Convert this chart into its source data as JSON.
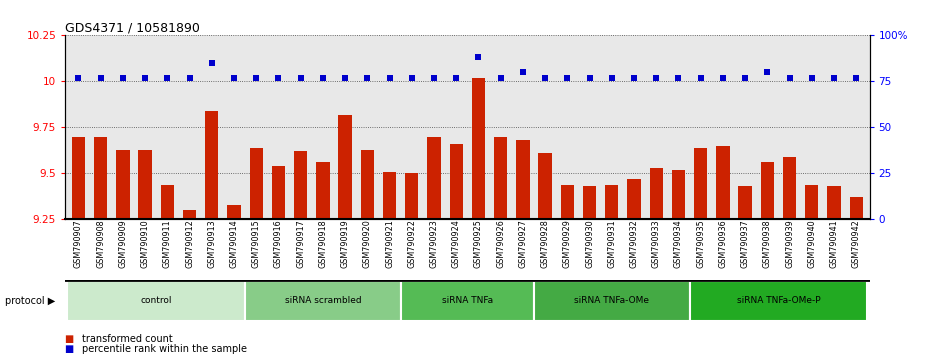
{
  "title": "GDS4371 / 10581890",
  "samples": [
    "GSM790907",
    "GSM790908",
    "GSM790909",
    "GSM790910",
    "GSM790911",
    "GSM790912",
    "GSM790913",
    "GSM790914",
    "GSM790915",
    "GSM790916",
    "GSM790917",
    "GSM790918",
    "GSM790919",
    "GSM790920",
    "GSM790921",
    "GSM790922",
    "GSM790923",
    "GSM790924",
    "GSM790925",
    "GSM790926",
    "GSM790927",
    "GSM790928",
    "GSM790929",
    "GSM790930",
    "GSM790931",
    "GSM790932",
    "GSM790933",
    "GSM790934",
    "GSM790935",
    "GSM790936",
    "GSM790937",
    "GSM790938",
    "GSM790939",
    "GSM790940",
    "GSM790941",
    "GSM790942"
  ],
  "red_values": [
    9.7,
    9.7,
    9.63,
    9.63,
    9.44,
    9.3,
    9.84,
    9.33,
    9.64,
    9.54,
    9.62,
    9.56,
    9.82,
    9.63,
    9.51,
    9.5,
    9.7,
    9.66,
    10.02,
    9.7,
    9.68,
    9.61,
    9.44,
    9.43,
    9.44,
    9.47,
    9.53,
    9.52,
    9.64,
    9.65,
    9.43,
    9.56,
    9.59,
    9.44,
    9.43,
    9.37
  ],
  "blue_values": [
    77,
    77,
    77,
    77,
    77,
    77,
    85,
    77,
    77,
    77,
    77,
    77,
    77,
    77,
    77,
    77,
    77,
    77,
    88,
    77,
    80,
    77,
    77,
    77,
    77,
    77,
    77,
    77,
    77,
    77,
    77,
    80,
    77,
    77,
    77,
    77
  ],
  "groups": [
    {
      "label": "control",
      "start": 0,
      "end": 8,
      "color": "#cceacc"
    },
    {
      "label": "siRNA scrambled",
      "start": 8,
      "end": 15,
      "color": "#88cc88"
    },
    {
      "label": "siRNA TNFa",
      "start": 15,
      "end": 21,
      "color": "#55bb55"
    },
    {
      "label": "siRNA TNFa-OMe",
      "start": 21,
      "end": 28,
      "color": "#44aa44"
    },
    {
      "label": "siRNA TNFa-OMe-P",
      "start": 28,
      "end": 36,
      "color": "#22aa22"
    }
  ],
  "ylim_left": [
    9.25,
    10.25
  ],
  "ylim_right": [
    0,
    100
  ],
  "yticks_left": [
    9.25,
    9.5,
    9.75,
    10.0,
    10.25
  ],
  "yticks_right": [
    0,
    25,
    50,
    75,
    100
  ],
  "ytick_labels_left": [
    "9.25",
    "9.5",
    "9.75",
    "10",
    "10.25"
  ],
  "ytick_labels_right": [
    "0",
    "25",
    "50",
    "75",
    "100%"
  ],
  "bar_color": "#cc2200",
  "dot_color": "#0000cc",
  "bg_color": "#e8e8e8",
  "legend_red": "transformed count",
  "legend_blue": "percentile rank within the sample"
}
